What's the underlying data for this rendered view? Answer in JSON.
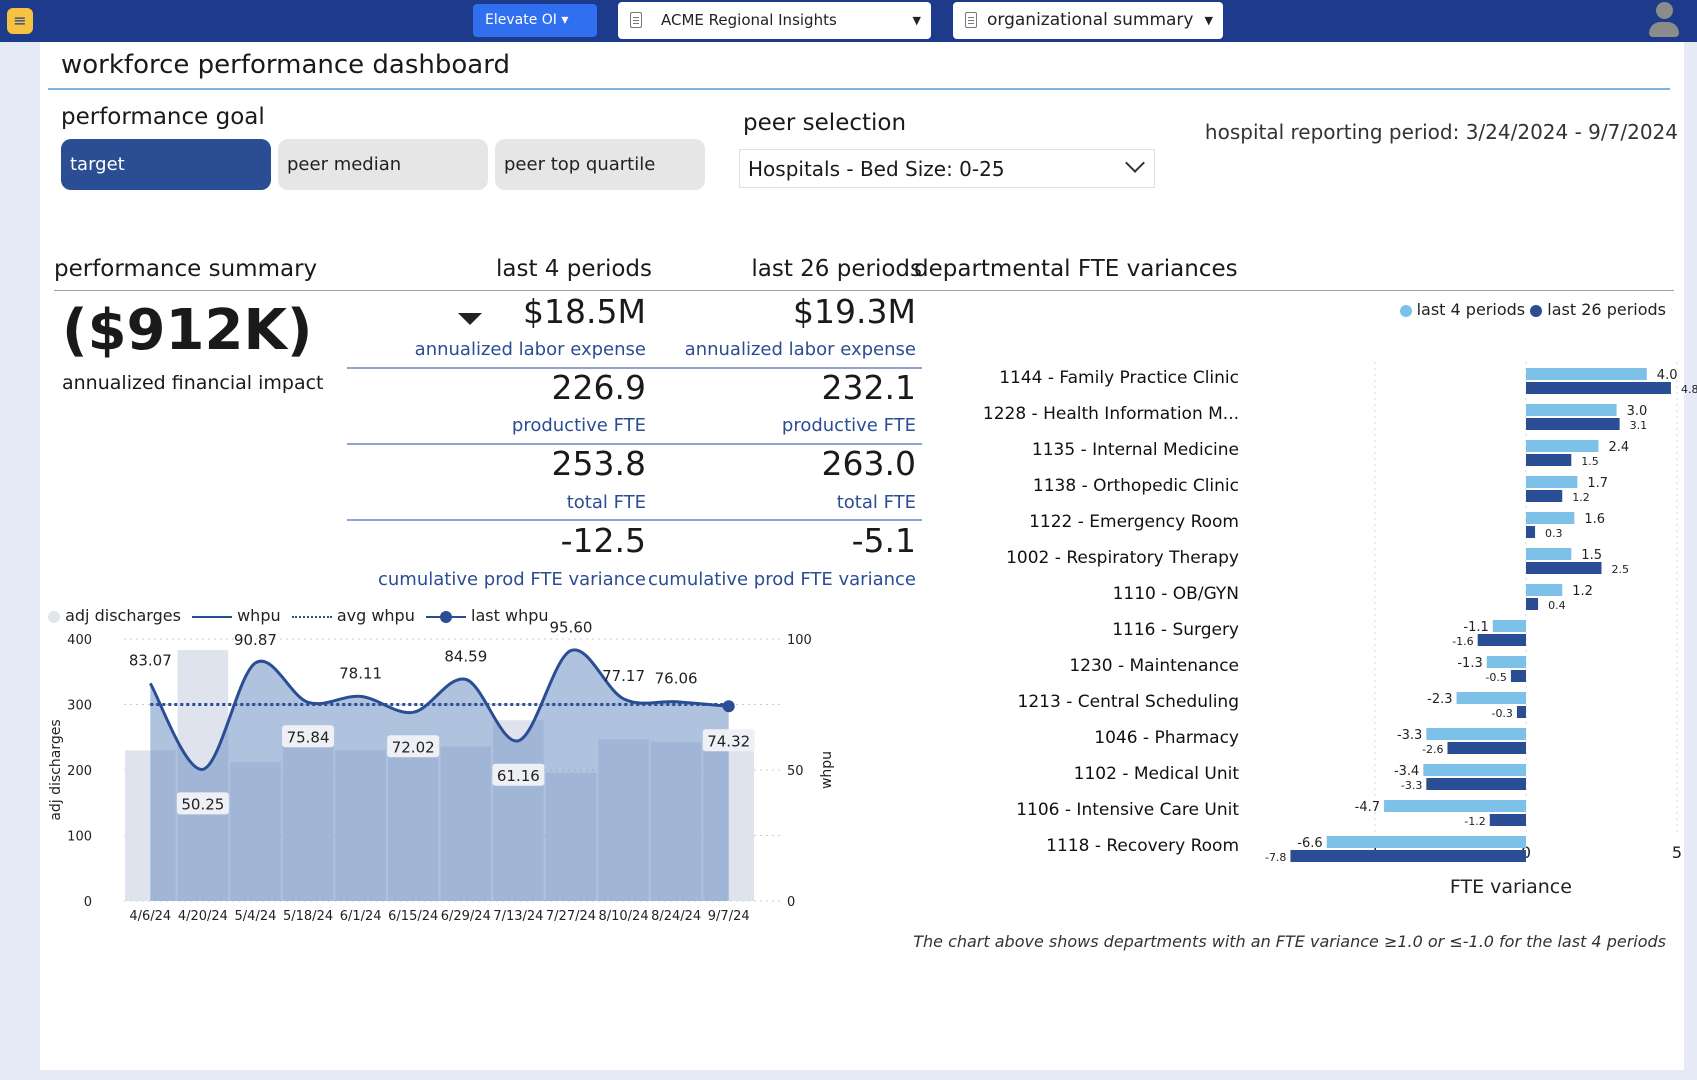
{
  "topbar": {
    "app_label": "Elevate OI",
    "report_label": "ACME Regional Insights",
    "view_label": "organizational summary"
  },
  "page": {
    "title": "workforce performance dashboard"
  },
  "goal": {
    "label": "performance goal",
    "options": [
      "target",
      "peer median",
      "peer top quartile"
    ],
    "selected": "target"
  },
  "peer": {
    "label": "peer selection",
    "selected": "Hospitals - Bed Size: 0-25"
  },
  "reporting_period": "hospital reporting period: 3/24/2024 - 9/7/2024",
  "summary": {
    "label": "performance summary",
    "col4_label": "last 4 periods",
    "col26_label": "last 26 periods",
    "impact_value": "($912K)",
    "impact_label": "annualized financial impact",
    "metrics": [
      {
        "v4": "$18.5M",
        "v26": "$19.3M",
        "label": "annualized labor expense",
        "arrow": "down"
      },
      {
        "v4": "226.9",
        "v26": "232.1",
        "label": "productive FTE"
      },
      {
        "v4": "253.8",
        "v26": "263.0",
        "label": "total FTE"
      },
      {
        "v4": "-12.5",
        "v26": "-5.1",
        "label": "cumulative prod FTE variance"
      }
    ]
  },
  "colors": {
    "brand_dark": "#1e3a8a",
    "accent": "#2f6ff0",
    "label_blue": "#2a4d94",
    "bar_light": "#7ec1e8",
    "bar_dark": "#2a4d94",
    "line": "#2a4d94"
  },
  "chart_data": [
    {
      "type": "bar+line",
      "legend": [
        "adj discharges",
        "whpu",
        "avg whpu",
        "last whpu"
      ],
      "x": [
        "4/6/24",
        "4/20/24",
        "5/4/24",
        "5/18/24",
        "6/1/24",
        "6/15/24",
        "6/29/24",
        "7/13/24",
        "7/27/24",
        "8/10/24",
        "8/24/24",
        "9/7/24"
      ],
      "bars": [
        230,
        383,
        212,
        253,
        230,
        243,
        236,
        276,
        196,
        247,
        243,
        230
      ],
      "bar_axis": {
        "label": "adj discharges",
        "ylim": [
          0,
          400
        ],
        "ticks": [
          0,
          100,
          200,
          300,
          400
        ]
      },
      "whpu": [
        83.07,
        50.25,
        90.87,
        75.84,
        78.11,
        72.02,
        84.59,
        61.16,
        95.6,
        77.17,
        76.06,
        74.32
      ],
      "avg_whpu": 75,
      "whpu_axis": {
        "label": "whpu",
        "ylim": [
          0,
          100
        ],
        "ticks": [
          0,
          50,
          100
        ]
      }
    },
    {
      "type": "bar",
      "title": "departmental FTE variances",
      "orientation": "horizontal",
      "legend": [
        "last 4 periods",
        "last 26 periods"
      ],
      "legend_position": "top-right",
      "xlabel": "FTE variance",
      "xlim": [
        -8.5,
        5.5
      ],
      "xticks": [
        "-5",
        "0",
        "5"
      ],
      "categories": [
        "1144 - Family Practice Clinic",
        "1228 - Health Information M...",
        "1135 - Internal Medicine",
        "1138 - Orthopedic Clinic",
        "1122 - Emergency Room",
        "1002 - Respiratory Therapy",
        "1110 - OB/GYN",
        "1116 - Surgery",
        "1230 - Maintenance",
        "1213 - Central Scheduling",
        "1046 - Pharmacy",
        "1102 - Medical Unit",
        "1106 - Intensive Care Unit",
        "1118 - Recovery Room"
      ],
      "series": [
        {
          "name": "last 4 periods",
          "values": [
            4.0,
            3.0,
            2.4,
            1.7,
            1.6,
            1.5,
            1.2,
            -1.1,
            -1.3,
            -2.3,
            -3.3,
            -3.4,
            -4.7,
            -6.6
          ]
        },
        {
          "name": "last 26 periods",
          "values": [
            4.8,
            3.1,
            1.5,
            1.2,
            0.3,
            2.5,
            0.4,
            -1.6,
            -0.5,
            -0.3,
            -2.6,
            -3.3,
            -1.2,
            -7.8
          ]
        }
      ]
    }
  ],
  "fte_footnote": "The chart above shows departments with an FTE variance ≥1.0 or ≤-1.0 for the last 4 periods"
}
